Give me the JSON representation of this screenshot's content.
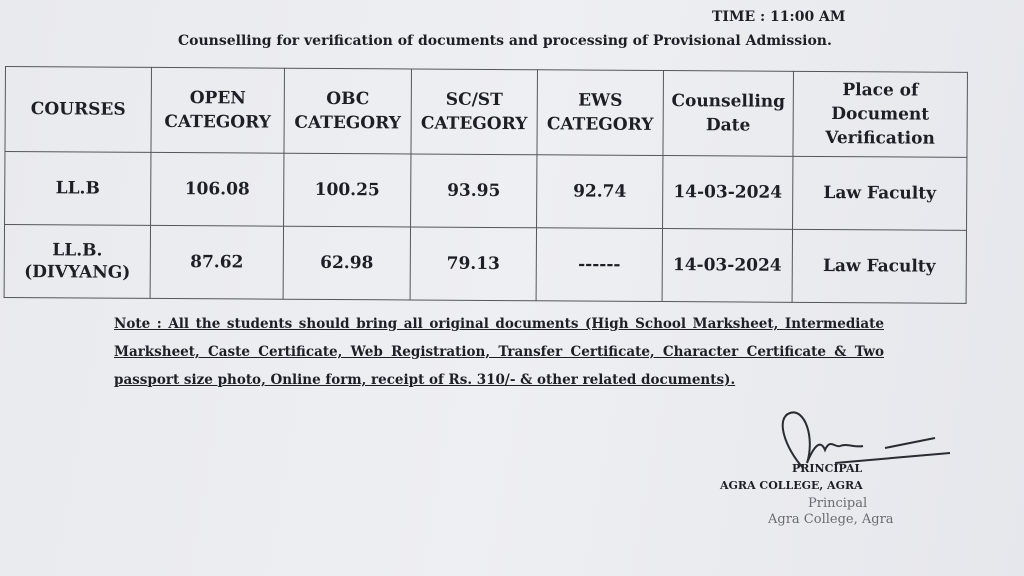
{
  "time": "TIME : 11:00 AM",
  "heading": "Counselling for verification of documents and processing of Provisional Admission.",
  "table": {
    "headers": [
      "COURSES",
      "OPEN CATEGORY",
      "OBC CATEGORY",
      "SC/ST CATEGORY",
      "EWS CATEGORY",
      "Counselling Date",
      "Place of Document Verification"
    ],
    "rows": [
      [
        "LL.B",
        "106.08",
        "100.25",
        "93.95",
        "92.74",
        "14-03-2024",
        "Law Faculty"
      ],
      [
        "LL.B. (DIVYANG)",
        "87.62",
        "62.98",
        "79.13",
        "------",
        "14-03-2024",
        "Law Faculty"
      ]
    ]
  },
  "note": "Note : All the students should bring all original documents (High School Marksheet, Intermediate Marksheet, Caste Certificate, Web Registration, Transfer Certificate, Character Certificate & Two passport size photo, Online form, receipt of Rs. 310/- & other related documents).",
  "signature": {
    "title": "PRINCIPAL",
    "college": "AGRA COLLEGE, AGRA",
    "stamp_line1": "Principal",
    "stamp_line2": "Agra College, Agra"
  }
}
